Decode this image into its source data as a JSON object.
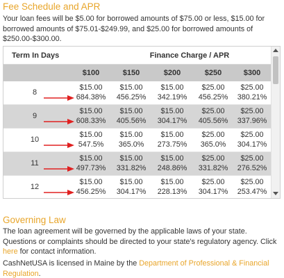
{
  "fee_section": {
    "heading": "Fee Schedule and APR",
    "intro": "Your loan fees will be $5.00 for borrowed amounts of $75.00 or less, $15.00 for borrowed amounts of $75.01-$249.99, and $25.00 for borrowed amounts of $250.00-$300.00."
  },
  "table": {
    "term_header": "Term In Days",
    "finance_header": "Finance Charge / APR",
    "amounts": [
      "$100",
      "$150",
      "$200",
      "$250",
      "$300"
    ],
    "rows": [
      {
        "term": "8",
        "cells": [
          [
            "$15.00",
            "684.38%"
          ],
          [
            "$15.00",
            "456.25%"
          ],
          [
            "$15.00",
            "342.19%"
          ],
          [
            "$25.00",
            "456.25%"
          ],
          [
            "$25.00",
            "380.21%"
          ]
        ]
      },
      {
        "term": "9",
        "cells": [
          [
            "$15.00",
            "608.33%"
          ],
          [
            "$15.00",
            "405.56%"
          ],
          [
            "$15.00",
            "304.17%"
          ],
          [
            "$25.00",
            "405.56%"
          ],
          [
            "$25.00",
            "337.96%"
          ]
        ]
      },
      {
        "term": "10",
        "cells": [
          [
            "$15.00",
            "547.5%"
          ],
          [
            "$15.00",
            "365.0%"
          ],
          [
            "$15.00",
            "273.75%"
          ],
          [
            "$25.00",
            "365.0%"
          ],
          [
            "$25.00",
            "304.17%"
          ]
        ]
      },
      {
        "term": "11",
        "cells": [
          [
            "$15.00",
            "497.73%"
          ],
          [
            "$15.00",
            "331.82%"
          ],
          [
            "$15.00",
            "248.86%"
          ],
          [
            "$25.00",
            "331.82%"
          ],
          [
            "$25.00",
            "276.52%"
          ]
        ]
      },
      {
        "term": "12",
        "cells": [
          [
            "$15.00",
            "456.25%"
          ],
          [
            "$15.00",
            "304.17%"
          ],
          [
            "$15.00",
            "228.13%"
          ],
          [
            "$25.00",
            "304.17%"
          ],
          [
            "$25.00",
            "253.47%"
          ]
        ]
      }
    ]
  },
  "law_section": {
    "heading": "Governing Law",
    "text_before_link": "The loan agreement will be governed by the applicable laws of your state. Questions or complaints should be directed to your state's regulatory agency. Click ",
    "link_here": "here",
    "text_after_link": " for contact information."
  },
  "license": {
    "text_before": "CashNetUSA is licensed in Maine by the ",
    "link": "Department of Professional & Financial Regulation",
    "text_after": "."
  },
  "colors": {
    "accent": "#e8a52a",
    "arrow": "#e02020",
    "shaded_row": "#d6d6d6",
    "header_row": "#c9c9c9"
  }
}
